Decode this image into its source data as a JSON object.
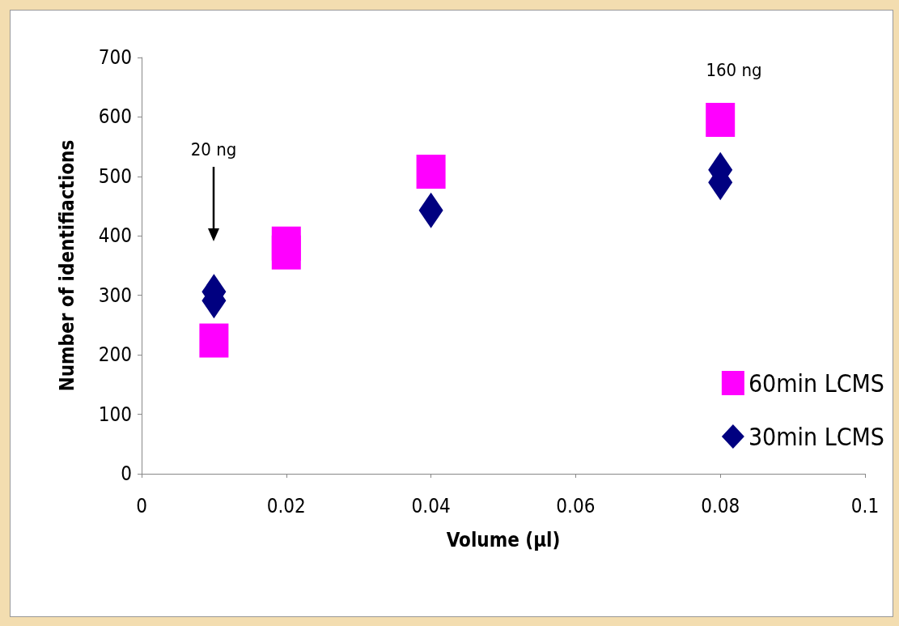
{
  "chart_data": {
    "type": "scatter",
    "xlabel": "Volume (µl)",
    "ylabel": "Number of identifiactions",
    "xlim": [
      0,
      0.1
    ],
    "xticks": [
      0,
      0.02,
      0.04,
      0.06,
      0.08,
      0.1
    ],
    "ylim": [
      0,
      700
    ],
    "yticks": [
      0,
      100,
      200,
      300,
      400,
      500,
      600,
      700
    ],
    "grid": false,
    "legend": "right",
    "series": [
      {
        "name": "60min LCMS",
        "color": "#ff00ff",
        "marker": "square",
        "x": [
          0.01,
          0.02,
          0.02,
          0.04,
          0.08
        ],
        "values": [
          224,
          387,
          372,
          508,
          595
        ]
      },
      {
        "name": "30min LCMS",
        "color": "#000080",
        "marker": "diamond",
        "x": [
          0.01,
          0.01,
          0.02,
          0.04,
          0.08,
          0.08
        ],
        "values": [
          306,
          291,
          null,
          443,
          511,
          490
        ]
      }
    ],
    "annotations": [
      "20 ng",
      "160 ng"
    ]
  }
}
